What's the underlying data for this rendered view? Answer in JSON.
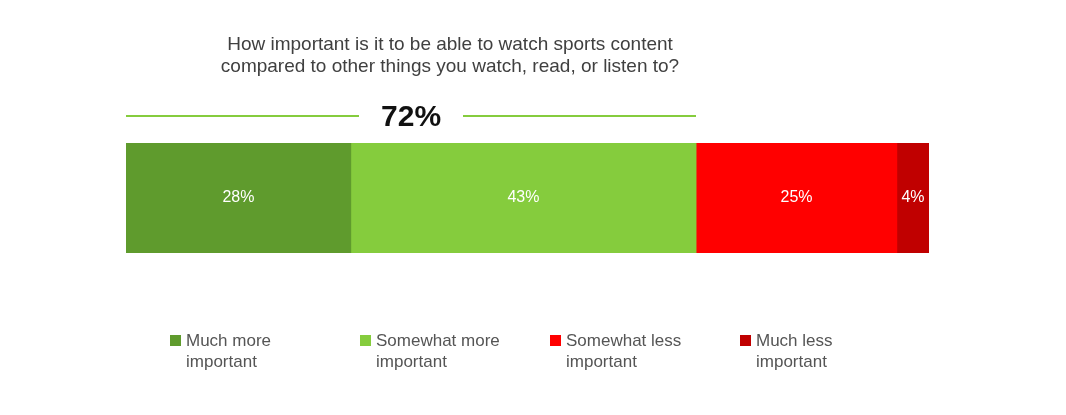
{
  "chart_data": {
    "type": "bar",
    "orientation": "horizontal",
    "stacked": true,
    "title": "How important is it to be able to watch sports content compared to other things you watch, read, or listen to?",
    "categories": [
      null
    ],
    "xlim": [
      0,
      100
    ],
    "tick_labels": false,
    "legend": "bottom",
    "annotations": [
      "72%"
    ],
    "series": [
      {
        "name": "Much more important",
        "color": "#5f9b2d",
        "values": [
          28
        ],
        "value_labels": [
          "28%"
        ]
      },
      {
        "name": "Somewhat more important",
        "color": "#85cc3d",
        "values": [
          43
        ],
        "value_labels": [
          "43%"
        ]
      },
      {
        "name": "Somewhat less important",
        "color": "#ff0000",
        "values": [
          25
        ],
        "value_labels": [
          "25%"
        ]
      },
      {
        "name": "Much less important",
        "color": "#c00000",
        "values": [
          4
        ],
        "value_labels": [
          "4%"
        ]
      }
    ]
  }
}
